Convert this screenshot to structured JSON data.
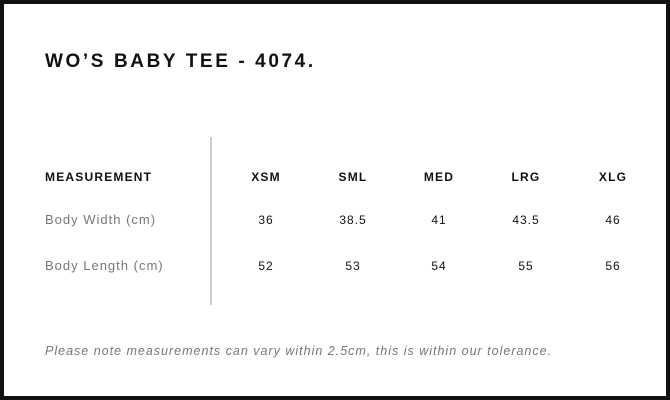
{
  "title": "WO’S BABY TEE - 4074.",
  "table": {
    "header_label": "MEASUREMENT",
    "sizes": [
      "XSM",
      "SML",
      "MED",
      "LRG",
      "XLG"
    ],
    "rows": [
      {
        "label": "Body Width (cm)",
        "values": [
          "36",
          "38.5",
          "41",
          "43.5",
          "46"
        ]
      },
      {
        "label": "Body Length (cm)",
        "values": [
          "52",
          "53",
          "54",
          "55",
          "56"
        ]
      }
    ]
  },
  "note": "Please note measurements can vary within 2.5cm, this is within our tolerance."
}
